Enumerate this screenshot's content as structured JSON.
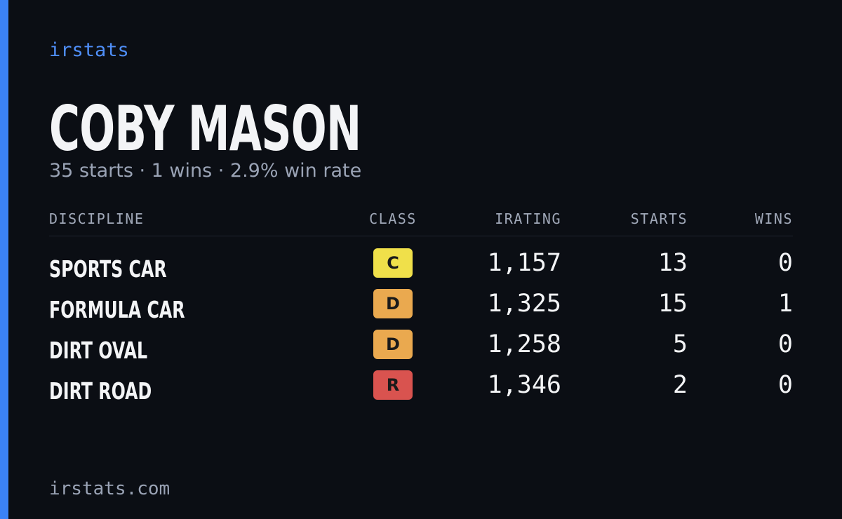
{
  "brand": "irstats",
  "driver": {
    "name": "COBY MASON",
    "summary": "35 starts · 1 wins · 2.9% win rate"
  },
  "table": {
    "columns": [
      "DISCIPLINE",
      "CLASS",
      "IRATING",
      "STARTS",
      "WINS"
    ],
    "rows": [
      {
        "discipline": "SPORTS CAR",
        "class": "C",
        "class_color": "#f0e04a",
        "irating": "1,157",
        "starts": 13,
        "wins": 0
      },
      {
        "discipline": "FORMULA CAR",
        "class": "D",
        "class_color": "#eaa94f",
        "irating": "1,325",
        "starts": 15,
        "wins": 1
      },
      {
        "discipline": "DIRT OVAL",
        "class": "D",
        "class_color": "#eaa94f",
        "irating": "1,258",
        "starts": 5,
        "wins": 0
      },
      {
        "discipline": "DIRT ROAD",
        "class": "R",
        "class_color": "#d9534f",
        "irating": "1,346",
        "starts": 2,
        "wins": 0
      }
    ]
  },
  "footer": "irstats.com"
}
